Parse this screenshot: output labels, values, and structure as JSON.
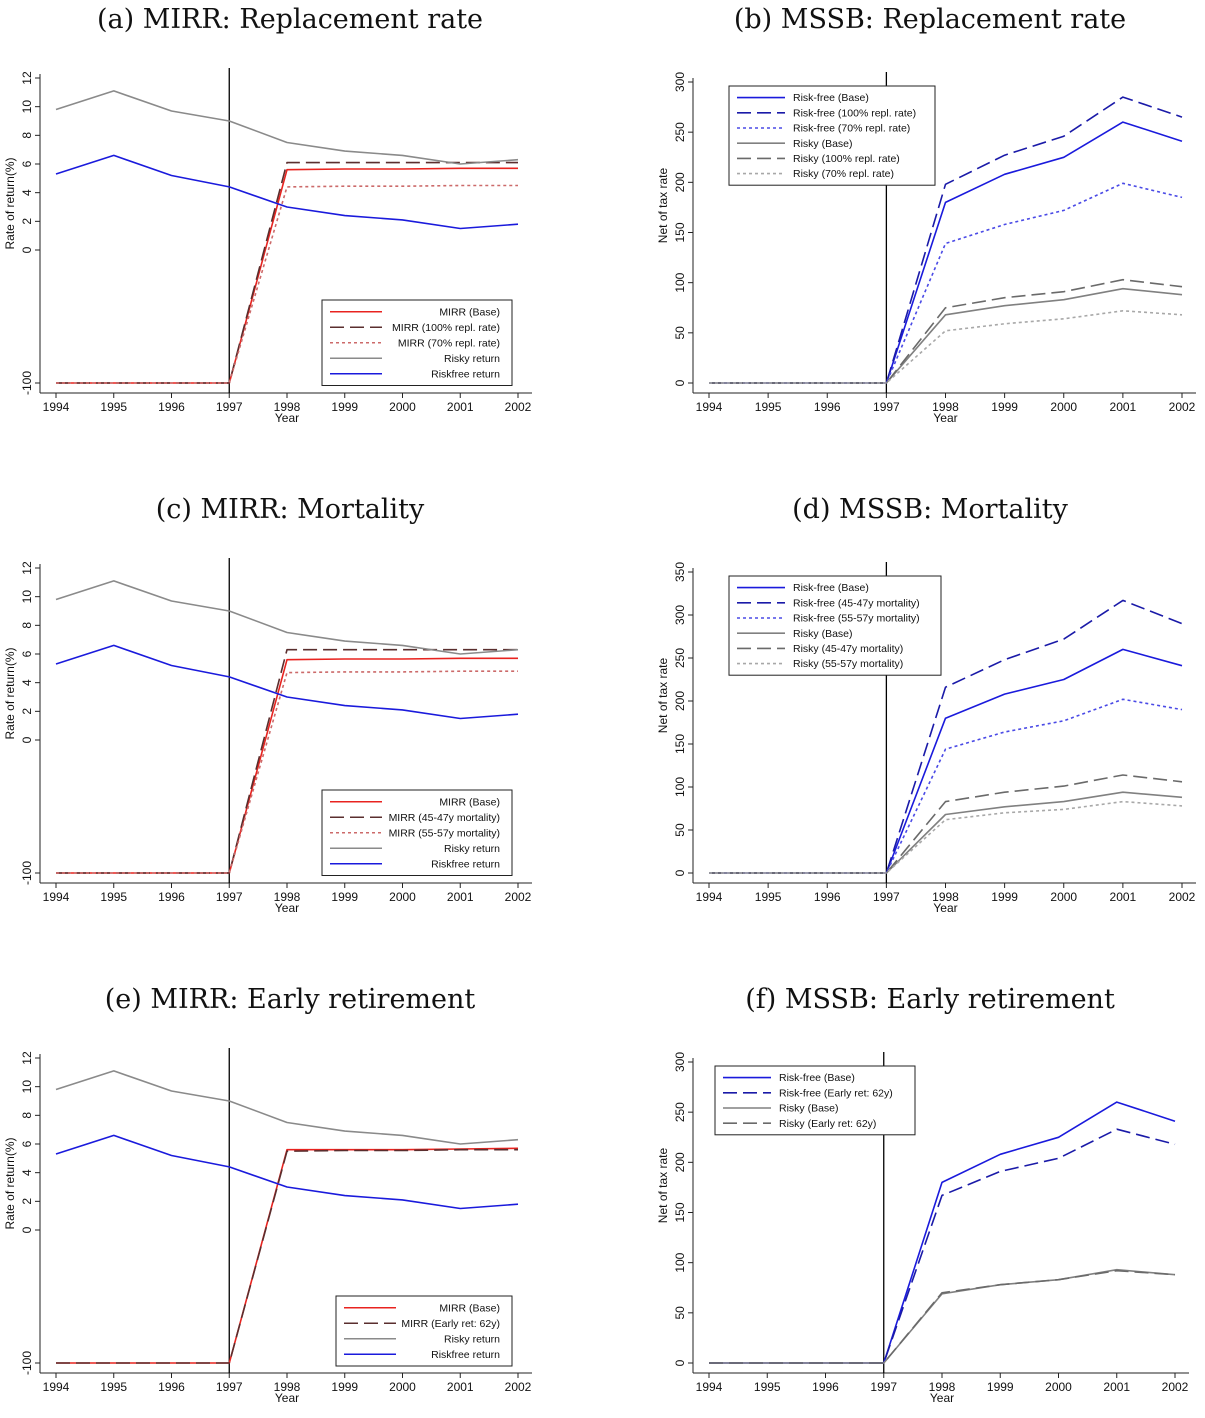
{
  "chart_data": [
    {
      "type": "line",
      "panel": "a",
      "title": "(a) MIRR: Replacement rate",
      "xlabel": "Year",
      "ylabel": "Rate of return(%)",
      "x": [
        1994,
        1995,
        1996,
        1997,
        1998,
        1999,
        2000,
        2001,
        2002
      ],
      "xticks": [
        "1994",
        "1995",
        "1996",
        "1997",
        "1998",
        "1999",
        "2000",
        "2001",
        "2002"
      ],
      "yticks": [
        "-100",
        "0",
        "2",
        "4",
        "6",
        "8",
        "10",
        "12"
      ],
      "yscale": "broken",
      "vline": 1997,
      "legend": "bottom-right",
      "series": [
        {
          "name": "MIRR (Base)",
          "color": "#e8231f",
          "dash": "solid",
          "values": [
            -100,
            -100,
            -100,
            -100,
            5.6,
            5.65,
            5.65,
            5.7,
            5.7
          ]
        },
        {
          "name": "MIRR (100% repl. rate)",
          "color": "#5a2e2e",
          "dash": "long",
          "values": [
            -100,
            -100,
            -100,
            -100,
            6.1,
            6.1,
            6.1,
            6.1,
            6.1
          ]
        },
        {
          "name": "MIRR (70% repl. rate)",
          "color": "#cc6a6a",
          "dash": "short",
          "values": [
            -100,
            -100,
            -100,
            -100,
            4.4,
            4.45,
            4.45,
            4.5,
            4.5
          ]
        },
        {
          "name": "Risky return",
          "color": "#8a8a8a",
          "dash": "solid",
          "values": [
            9.8,
            11.1,
            9.7,
            9.0,
            7.5,
            6.9,
            6.6,
            6.0,
            6.3
          ]
        },
        {
          "name": "Riskfree return",
          "color": "#1a1adc",
          "dash": "solid",
          "values": [
            5.3,
            6.6,
            5.2,
            4.4,
            3.0,
            2.4,
            2.1,
            1.5,
            1.8
          ]
        }
      ]
    },
    {
      "type": "line",
      "panel": "b",
      "title": "(b) MSSB: Replacement rate",
      "xlabel": "Year",
      "ylabel": "Net of tax rate",
      "x": [
        1994,
        1995,
        1996,
        1997,
        1998,
        1999,
        2000,
        2001,
        2002
      ],
      "xticks": [
        "1994",
        "1995",
        "1996",
        "1997",
        "1998",
        "1999",
        "2000",
        "2001",
        "2002"
      ],
      "yticks": [
        "0",
        "50",
        "100",
        "150",
        "200",
        "250",
        "300"
      ],
      "ylim": [
        0,
        300
      ],
      "vline": 1997,
      "legend": "top-left",
      "series": [
        {
          "name": "Risk-free (Base)",
          "color": "#1a1adc",
          "dash": "solid",
          "values": [
            0,
            0,
            0,
            0,
            180,
            208,
            225,
            260,
            241
          ]
        },
        {
          "name": "Risk-free (100% repl. rate)",
          "color": "#1a1aa8",
          "dash": "long",
          "values": [
            0,
            0,
            0,
            0,
            198,
            227,
            246,
            285,
            265
          ]
        },
        {
          "name": "Risk-free (70% repl. rate)",
          "color": "#4a4ae6",
          "dash": "short",
          "values": [
            0,
            0,
            0,
            0,
            139,
            158,
            172,
            199,
            185
          ]
        },
        {
          "name": "Risky (Base)",
          "color": "#808080",
          "dash": "solid",
          "values": [
            0,
            0,
            0,
            0,
            68,
            77,
            83,
            94,
            88
          ]
        },
        {
          "name": "Risky (100% repl. rate)",
          "color": "#6a6a6a",
          "dash": "long",
          "values": [
            0,
            0,
            0,
            0,
            75,
            85,
            91,
            103,
            96
          ]
        },
        {
          "name": "Risky (70% repl. rate)",
          "color": "#a8a8a8",
          "dash": "short",
          "values": [
            0,
            0,
            0,
            0,
            52,
            59,
            64,
            72,
            68
          ]
        }
      ]
    },
    {
      "type": "line",
      "panel": "c",
      "title": "(c) MIRR: Mortality",
      "xlabel": "Year",
      "ylabel": "Rate of return(%)",
      "x": [
        1994,
        1995,
        1996,
        1997,
        1998,
        1999,
        2000,
        2001,
        2002
      ],
      "xticks": [
        "1994",
        "1995",
        "1996",
        "1997",
        "1998",
        "1999",
        "2000",
        "2001",
        "2002"
      ],
      "yticks": [
        "-100",
        "0",
        "2",
        "4",
        "6",
        "8",
        "10",
        "12"
      ],
      "yscale": "broken",
      "vline": 1997,
      "legend": "bottom-right",
      "series": [
        {
          "name": "MIRR (Base)",
          "color": "#e8231f",
          "dash": "solid",
          "values": [
            -100,
            -100,
            -100,
            -100,
            5.6,
            5.65,
            5.65,
            5.7,
            5.7
          ]
        },
        {
          "name": "MIRR (45-47y mortality)",
          "color": "#5a2e2e",
          "dash": "long",
          "values": [
            -100,
            -100,
            -100,
            -100,
            6.3,
            6.3,
            6.3,
            6.3,
            6.3
          ]
        },
        {
          "name": "MIRR (55-57y mortality)",
          "color": "#cc6a6a",
          "dash": "short",
          "values": [
            -100,
            -100,
            -100,
            -100,
            4.7,
            4.75,
            4.75,
            4.8,
            4.8
          ]
        },
        {
          "name": "Risky return",
          "color": "#8a8a8a",
          "dash": "solid",
          "values": [
            9.8,
            11.1,
            9.7,
            9.0,
            7.5,
            6.9,
            6.6,
            6.0,
            6.3
          ]
        },
        {
          "name": "Riskfree return",
          "color": "#1a1adc",
          "dash": "solid",
          "values": [
            5.3,
            6.6,
            5.2,
            4.4,
            3.0,
            2.4,
            2.1,
            1.5,
            1.8
          ]
        }
      ]
    },
    {
      "type": "line",
      "panel": "d",
      "title": "(d) MSSB: Mortality",
      "xlabel": "Year",
      "ylabel": "Net of tax rate",
      "x": [
        1994,
        1995,
        1996,
        1997,
        1998,
        1999,
        2000,
        2001,
        2002
      ],
      "xticks": [
        "1994",
        "1995",
        "1996",
        "1997",
        "1998",
        "1999",
        "2000",
        "2001",
        "2002"
      ],
      "yticks": [
        "0",
        "50",
        "100",
        "150",
        "200",
        "250",
        "300",
        "350"
      ],
      "ylim": [
        0,
        350
      ],
      "vline": 1997,
      "legend": "top-left",
      "series": [
        {
          "name": "Risk-free (Base)",
          "color": "#1a1adc",
          "dash": "solid",
          "values": [
            0,
            0,
            0,
            0,
            180,
            208,
            225,
            260,
            241
          ]
        },
        {
          "name": "Risk-free (45-47y mortality)",
          "color": "#1a1aa8",
          "dash": "long",
          "values": [
            0,
            0,
            0,
            0,
            216,
            248,
            272,
            317,
            290
          ]
        },
        {
          "name": "Risk-free (55-57y mortality)",
          "color": "#4a4ae6",
          "dash": "short",
          "values": [
            0,
            0,
            0,
            0,
            144,
            164,
            177,
            202,
            190
          ]
        },
        {
          "name": "Risky (Base)",
          "color": "#808080",
          "dash": "solid",
          "values": [
            0,
            0,
            0,
            0,
            68,
            77,
            83,
            94,
            88
          ]
        },
        {
          "name": "Risky (45-47y mortality)",
          "color": "#6a6a6a",
          "dash": "long",
          "values": [
            0,
            0,
            0,
            0,
            83,
            94,
            101,
            114,
            106
          ]
        },
        {
          "name": "Risky (55-57y mortality)",
          "color": "#a8a8a8",
          "dash": "short",
          "values": [
            0,
            0,
            0,
            0,
            62,
            70,
            74,
            83,
            78
          ]
        }
      ]
    },
    {
      "type": "line",
      "panel": "e",
      "title": "(e) MIRR: Early retirement",
      "xlabel": "Year",
      "ylabel": "Rate of return(%)",
      "x": [
        1994,
        1995,
        1996,
        1997,
        1998,
        1999,
        2000,
        2001,
        2002
      ],
      "xticks": [
        "1994",
        "1995",
        "1996",
        "1997",
        "1998",
        "1999",
        "2000",
        "2001",
        "2002"
      ],
      "yticks": [
        "-100",
        "0",
        "2",
        "4",
        "6",
        "8",
        "10",
        "12"
      ],
      "yscale": "broken",
      "vline": 1997,
      "legend": "bottom-right",
      "series": [
        {
          "name": "MIRR (Base)",
          "color": "#e8231f",
          "dash": "solid",
          "values": [
            -100,
            -100,
            -100,
            -100,
            5.6,
            5.6,
            5.6,
            5.65,
            5.7
          ]
        },
        {
          "name": "MIRR (Early ret: 62y)",
          "color": "#5a2e2e",
          "dash": "long",
          "values": [
            -100,
            -100,
            -100,
            -100,
            5.5,
            5.55,
            5.55,
            5.6,
            5.6
          ]
        },
        {
          "name": "Risky return",
          "color": "#8a8a8a",
          "dash": "solid",
          "values": [
            9.8,
            11.1,
            9.7,
            9.0,
            7.5,
            6.9,
            6.6,
            6.0,
            6.3
          ]
        },
        {
          "name": "Riskfree return",
          "color": "#1a1adc",
          "dash": "solid",
          "values": [
            5.3,
            6.6,
            5.2,
            4.4,
            3.0,
            2.4,
            2.1,
            1.5,
            1.8
          ]
        }
      ]
    },
    {
      "type": "line",
      "panel": "f",
      "title": "(f) MSSB: Early retirement",
      "xlabel": "Year",
      "ylabel": "Net of tax rate",
      "x": [
        1994,
        1995,
        1996,
        1997,
        1998,
        1999,
        2000,
        2001,
        2002
      ],
      "xticks": [
        "1994",
        "1995",
        "1996",
        "1997",
        "1998",
        "1999",
        "2000",
        "2001",
        "2002"
      ],
      "yticks": [
        "0",
        "50",
        "100",
        "150",
        "200",
        "250",
        "300"
      ],
      "ylim": [
        0,
        300
      ],
      "vline": 1997,
      "legend": "top-left",
      "series": [
        {
          "name": "Risk-free (Base)",
          "color": "#1a1adc",
          "dash": "solid",
          "values": [
            0,
            0,
            0,
            0,
            180,
            208,
            225,
            260,
            241
          ]
        },
        {
          "name": "Risk-free (Early ret: 62y)",
          "color": "#1a1aa8",
          "dash": "long",
          "values": [
            0,
            0,
            0,
            0,
            167,
            191,
            204,
            233,
            218
          ]
        },
        {
          "name": "Risky (Base)",
          "color": "#808080",
          "dash": "solid",
          "values": [
            0,
            0,
            0,
            0,
            69,
            78,
            83,
            93,
            88
          ]
        },
        {
          "name": "Risky (Early ret: 62y)",
          "color": "#6a6a6a",
          "dash": "long",
          "values": [
            0,
            0,
            0,
            0,
            70,
            78,
            83,
            92,
            88
          ]
        }
      ]
    }
  ]
}
